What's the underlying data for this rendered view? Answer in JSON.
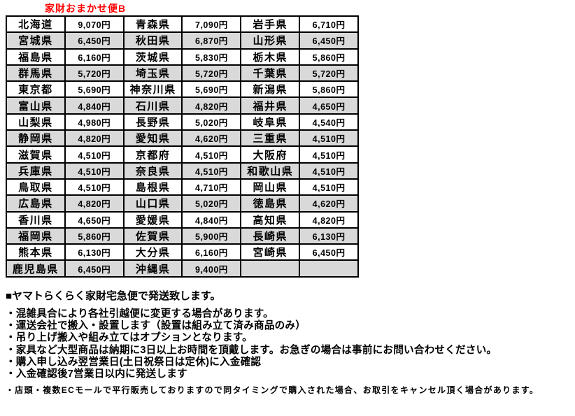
{
  "header": {
    "title": "家財おまかせ便B"
  },
  "colors": {
    "title_red": "#ff0000",
    "row_shade": "#d9d9d9",
    "table_border": "#000000"
  },
  "shipping_table": {
    "columns_per_row": 3,
    "rows": [
      [
        "北海道",
        "9,070円",
        "青森県",
        "7,090円",
        "岩手県",
        "6,710円"
      ],
      [
        "宮城県",
        "6,450円",
        "秋田県",
        "6,870円",
        "山形県",
        "6,450円"
      ],
      [
        "福島県",
        "6,160円",
        "茨城県",
        "5,830円",
        "栃木県",
        "5,860円"
      ],
      [
        "群馬県",
        "5,720円",
        "埼玉県",
        "5,720円",
        "千葉県",
        "5,720円"
      ],
      [
        "東京都",
        "5,690円",
        "神奈川県",
        "5,690円",
        "新潟県",
        "5,860円"
      ],
      [
        "富山県",
        "4,840円",
        "石川県",
        "4,820円",
        "福井県",
        "4,650円"
      ],
      [
        "山梨県",
        "4,980円",
        "長野県",
        "5,020円",
        "岐阜県",
        "4,540円"
      ],
      [
        "静岡県",
        "4,820円",
        "愛知県",
        "4,620円",
        "三重県",
        "4,510円"
      ],
      [
        "滋賀県",
        "4,510円",
        "京都府",
        "4,510円",
        "大阪府",
        "4,510円"
      ],
      [
        "兵庫県",
        "4,510円",
        "奈良県",
        "4,510円",
        "和歌山県",
        "4,510円"
      ],
      [
        "鳥取県",
        "4,510円",
        "島根県",
        "4,710円",
        "岡山県",
        "4,510円"
      ],
      [
        "広島県",
        "4,820円",
        "山口県",
        "5,020円",
        "徳島県",
        "4,620円"
      ],
      [
        "香川県",
        "4,650円",
        "愛媛県",
        "4,840円",
        "高知県",
        "4,820円"
      ],
      [
        "福岡県",
        "5,860円",
        "佐賀県",
        "5,900円",
        "長崎県",
        "6,130円"
      ],
      [
        "熊本県",
        "6,130円",
        "大分県",
        "6,160円",
        "宮崎県",
        "6,450円"
      ],
      [
        "鹿児島県",
        "6,450円",
        "沖縄県",
        "9,400円",
        "",
        ""
      ]
    ]
  },
  "notes": {
    "heading": "■ヤマトらくらく家財宅急便で発送致します。",
    "bullets": [
      "・混雑具合により各社引越便に変更する場合があります。",
      "・運送会社で搬入・設置します（設置は組み立て済み商品のみ）",
      "・吊り上げ搬入や組み立てはオプションとなります。",
      "・家具など大型商品は納期に3日以上お時間を頂戴します。お急ぎの場合は事前にお問い合わせください。",
      "・購入申し込み翌営業日(土日祝祭日は定休)に入金確認",
      "・入金確認後7営業日以内に発送します"
    ],
    "small_note": "・店頭・複数ECモールで平行販売しておりますので同タイミングで購入された場合、お取引をキャンセル頂く場合があります。"
  }
}
